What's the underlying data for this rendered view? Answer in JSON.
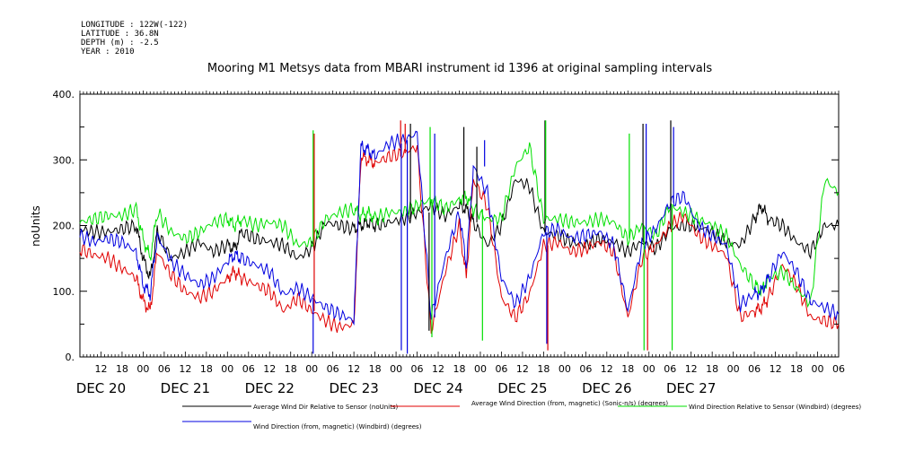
{
  "header": {
    "longitude": "LONGITUDE : 122W(-122)",
    "latitude": "LATITUDE : 36.8N",
    "depth": "DEPTH (m) : -2.5",
    "year": "YEAR : 2010"
  },
  "colors": {
    "black": "#000000",
    "red": "#e00000",
    "green": "#00e000",
    "blue": "#0000e0"
  },
  "chart_data": {
    "type": "line",
    "title": "Mooring M1 Metsys data from MBARI instrument id 1396 at original sampling intervals",
    "ylabel": "noUnits",
    "xlabel": "",
    "ylim": [
      0,
      400
    ],
    "yticks": [
      0,
      100,
      200,
      300,
      400
    ],
    "ytick_labels": [
      "0.",
      "100.",
      "200.",
      "300.",
      "400."
    ],
    "xlim_hours": [
      -18,
      198
    ],
    "hour_ticks": [
      {
        "h": -12,
        "label": "12"
      },
      {
        "h": -6,
        "label": "18"
      },
      {
        "h": 0,
        "label": "00"
      },
      {
        "h": 6,
        "label": "06"
      },
      {
        "h": 12,
        "label": "12"
      },
      {
        "h": 18,
        "label": "18"
      },
      {
        "h": 24,
        "label": "00"
      },
      {
        "h": 30,
        "label": "06"
      },
      {
        "h": 36,
        "label": "12"
      },
      {
        "h": 42,
        "label": "18"
      },
      {
        "h": 48,
        "label": "00"
      },
      {
        "h": 54,
        "label": "06"
      },
      {
        "h": 60,
        "label": "12"
      },
      {
        "h": 66,
        "label": "18"
      },
      {
        "h": 72,
        "label": "00"
      },
      {
        "h": 78,
        "label": "06"
      },
      {
        "h": 84,
        "label": "12"
      },
      {
        "h": 90,
        "label": "18"
      },
      {
        "h": 96,
        "label": "00"
      },
      {
        "h": 102,
        "label": "06"
      },
      {
        "h": 108,
        "label": "12"
      },
      {
        "h": 114,
        "label": "18"
      },
      {
        "h": 120,
        "label": "00"
      },
      {
        "h": 126,
        "label": "06"
      },
      {
        "h": 132,
        "label": "12"
      },
      {
        "h": 138,
        "label": "18"
      },
      {
        "h": 144,
        "label": "00"
      },
      {
        "h": 150,
        "label": "06"
      },
      {
        "h": 156,
        "label": "12"
      },
      {
        "h": 162,
        "label": "18"
      },
      {
        "h": 168,
        "label": "00"
      },
      {
        "h": 174,
        "label": "06"
      },
      {
        "h": 180,
        "label": "12"
      },
      {
        "h": 186,
        "label": "18"
      },
      {
        "h": 192,
        "label": "00"
      },
      {
        "h": 198,
        "label": "06"
      }
    ],
    "day_labels": [
      {
        "h": -12,
        "label": "DEC 20"
      },
      {
        "h": 12,
        "label": "DEC 21"
      },
      {
        "h": 36,
        "label": "DEC 22"
      },
      {
        "h": 60,
        "label": "DEC 23"
      },
      {
        "h": 84,
        "label": "DEC 24"
      },
      {
        "h": 108,
        "label": "DEC 25"
      },
      {
        "h": 132,
        "label": "DEC 26"
      },
      {
        "h": 156,
        "label": "DEC 27"
      }
    ],
    "x_hours": [
      -18,
      -14,
      -10,
      -6,
      -2,
      0,
      2,
      4,
      8,
      12,
      16,
      20,
      24,
      26,
      28,
      32,
      36,
      40,
      44,
      48,
      52,
      56,
      60,
      62,
      64,
      66,
      70,
      74,
      78,
      82,
      86,
      90,
      92,
      94,
      98,
      102,
      106,
      110,
      114,
      118,
      122,
      126,
      130,
      134,
      138,
      142,
      146,
      150,
      154,
      158,
      162,
      166,
      170,
      174,
      176,
      178,
      182,
      186,
      190,
      194,
      198
    ],
    "series": [
      {
        "name": "Average Wind Dir Relative to Sensor (noUnits)",
        "color": "#000000",
        "values": [
          195,
          190,
          190,
          195,
          200,
          150,
          120,
          190,
          150,
          160,
          175,
          160,
          170,
          165,
          190,
          180,
          175,
          170,
          150,
          165,
          205,
          200,
          195,
          200,
          205,
          200,
          205,
          210,
          220,
          230,
          215,
          230,
          225,
          205,
          170,
          200,
          270,
          260,
          190,
          185,
          175,
          170,
          180,
          175,
          160,
          175,
          165,
          195,
          200,
          200,
          190,
          175,
          170,
          210,
          230,
          210,
          200,
          175,
          160,
          200,
          200
        ]
      },
      {
        "name": "Average Wind Direction (from, magnetic) (Sonic-n/s) (degrees)",
        "color": "#e00000",
        "values": [
          165,
          155,
          150,
          135,
          120,
          85,
          70,
          160,
          125,
          100,
          90,
          100,
          120,
          130,
          120,
          110,
          100,
          70,
          90,
          70,
          55,
          45,
          50,
          305,
          300,
          295,
          305,
          310,
          320,
          40,
          130,
          200,
          120,
          270,
          230,
          90,
          60,
          95,
          170,
          175,
          160,
          165,
          175,
          160,
          60,
          150,
          170,
          200,
          215,
          185,
          170,
          155,
          60,
          70,
          75,
          90,
          140,
          110,
          60,
          55,
          50
        ]
      },
      {
        "name": "Wind Direction Relative to Sensor (Windbird) (degrees)",
        "color": "#00e000",
        "values": [
          205,
          210,
          215,
          215,
          225,
          180,
          150,
          220,
          190,
          180,
          190,
          205,
          210,
          200,
          210,
          200,
          205,
          200,
          170,
          175,
          210,
          220,
          225,
          215,
          220,
          210,
          220,
          220,
          230,
          240,
          225,
          240,
          245,
          225,
          210,
          210,
          290,
          320,
          210,
          210,
          205,
          205,
          210,
          205,
          180,
          200,
          185,
          230,
          220,
          210,
          200,
          185,
          140,
          110,
          100,
          120,
          130,
          105,
          80,
          270,
          250
        ]
      },
      {
        "name": "Wind Direction (from, magnetic) (Windbird) (degrees)",
        "color": "#0000e0",
        "values": [
          185,
          175,
          180,
          175,
          160,
          110,
          95,
          185,
          145,
          125,
          110,
          120,
          145,
          155,
          150,
          140,
          130,
          95,
          105,
          90,
          75,
          65,
          55,
          320,
          315,
          305,
          325,
          330,
          340,
          60,
          150,
          220,
          140,
          290,
          250,
          120,
          80,
          120,
          190,
          195,
          180,
          185,
          190,
          170,
          70,
          170,
          195,
          235,
          245,
          200,
          185,
          170,
          80,
          95,
          100,
          120,
          160,
          130,
          85,
          75,
          65
        ]
      }
    ],
    "spikes": [
      {
        "h": 48.4,
        "series": 2,
        "to": 345
      },
      {
        "h": 48.4,
        "series": 3,
        "to": 5
      },
      {
        "h": 48.7,
        "series": 1,
        "to": 340
      },
      {
        "h": 73.3,
        "series": 1,
        "to": 360
      },
      {
        "h": 73.5,
        "series": 3,
        "to": 10
      },
      {
        "h": 74.6,
        "series": 1,
        "to": 355
      },
      {
        "h": 75.2,
        "series": 3,
        "to": 5
      },
      {
        "h": 76.1,
        "series": 0,
        "to": 355
      },
      {
        "h": 81.4,
        "series": 0,
        "to": 40
      },
      {
        "h": 81.7,
        "series": 2,
        "to": 350
      },
      {
        "h": 82.2,
        "series": 2,
        "to": 30
      },
      {
        "h": 83.0,
        "series": 3,
        "to": 340
      },
      {
        "h": 91.3,
        "series": 0,
        "to": 350
      },
      {
        "h": 95.0,
        "series": 0,
        "to": 320
      },
      {
        "h": 96.6,
        "series": 2,
        "to": 25
      },
      {
        "h": 97.2,
        "series": 3,
        "to": 330
      },
      {
        "h": 114.4,
        "series": 0,
        "to": 360
      },
      {
        "h": 114.6,
        "series": 2,
        "to": 360
      },
      {
        "h": 114.9,
        "series": 3,
        "to": 20
      },
      {
        "h": 115.2,
        "series": 1,
        "to": 10
      },
      {
        "h": 138.4,
        "series": 2,
        "to": 340
      },
      {
        "h": 142.3,
        "series": 0,
        "to": 355
      },
      {
        "h": 142.6,
        "series": 2,
        "to": 10
      },
      {
        "h": 143.2,
        "series": 3,
        "to": 355
      },
      {
        "h": 143.6,
        "series": 1,
        "to": 10
      },
      {
        "h": 150.2,
        "series": 0,
        "to": 360
      },
      {
        "h": 150.6,
        "series": 2,
        "to": 10
      },
      {
        "h": 151.0,
        "series": 3,
        "to": 350
      }
    ]
  }
}
